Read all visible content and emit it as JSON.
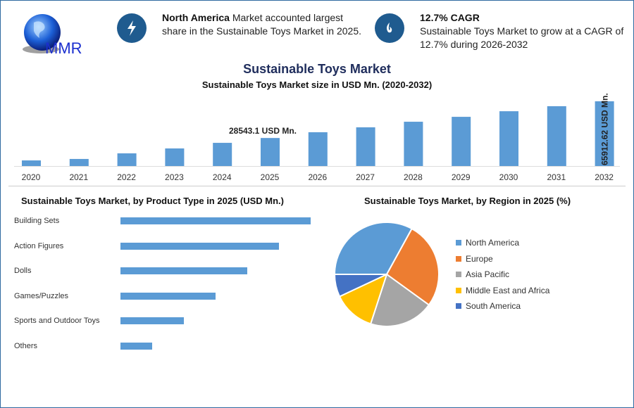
{
  "logo": {
    "text": "MMR"
  },
  "info": [
    {
      "icon": "lightning-icon",
      "bold": "North America",
      "text": " Market accounted largest share in the Sustainable Toys Market in 2025."
    },
    {
      "icon": "flame-icon",
      "bold": "12.7% CAGR",
      "text": "Sustainable Toys Market to grow at a CAGR of 12.7% during 2026-2032"
    }
  ],
  "colors": {
    "accent": "#1f5b8f",
    "bar": "#5b9bd5",
    "title": "#1f2d5c"
  },
  "main_title": "Sustainable Toys Market",
  "chart_data": [
    {
      "type": "bar",
      "title": "Sustainable Toys Market size in USD Mn. (2020-2032)",
      "categories": [
        "2020",
        "2021",
        "2022",
        "2023",
        "2024",
        "2025",
        "2026",
        "2027",
        "2028",
        "2029",
        "2030",
        "2031",
        "2032"
      ],
      "values": [
        5700,
        7200,
        12900,
        17900,
        23600,
        28543.1,
        34400,
        39400,
        45100,
        50100,
        55800,
        60900,
        65912.62
      ],
      "annotations": [
        {
          "category": "2025",
          "text": "28543.1 USD Mn."
        },
        {
          "category": "2032",
          "text": "65912.62 USD Mn."
        }
      ],
      "color": "#5b9bd5",
      "grid": false
    },
    {
      "type": "bar",
      "orientation": "horizontal",
      "title": "Sustainable Toys Market, by Product Type in 2025 (USD Mn.)",
      "categories": [
        "Building Sets",
        "Action Figures",
        "Dolls",
        "Games/Puzzles",
        "Sports and Outdoor Toys",
        "Others"
      ],
      "values": [
        6,
        5,
        4,
        3,
        2,
        1
      ],
      "color": "#5b9bd5"
    },
    {
      "type": "pie",
      "title": "Sustainable Toys Market, by Region in 2025 (%)",
      "categories": [
        "North America",
        "Europe",
        "Asia Pacific",
        "Middle East and Africa",
        "South America"
      ],
      "values": [
        33,
        27,
        20,
        13,
        7
      ],
      "colors": [
        "#5b9bd5",
        "#ed7d31",
        "#a5a5a5",
        "#ffc000",
        "#4472c4"
      ],
      "legend": "right"
    }
  ]
}
